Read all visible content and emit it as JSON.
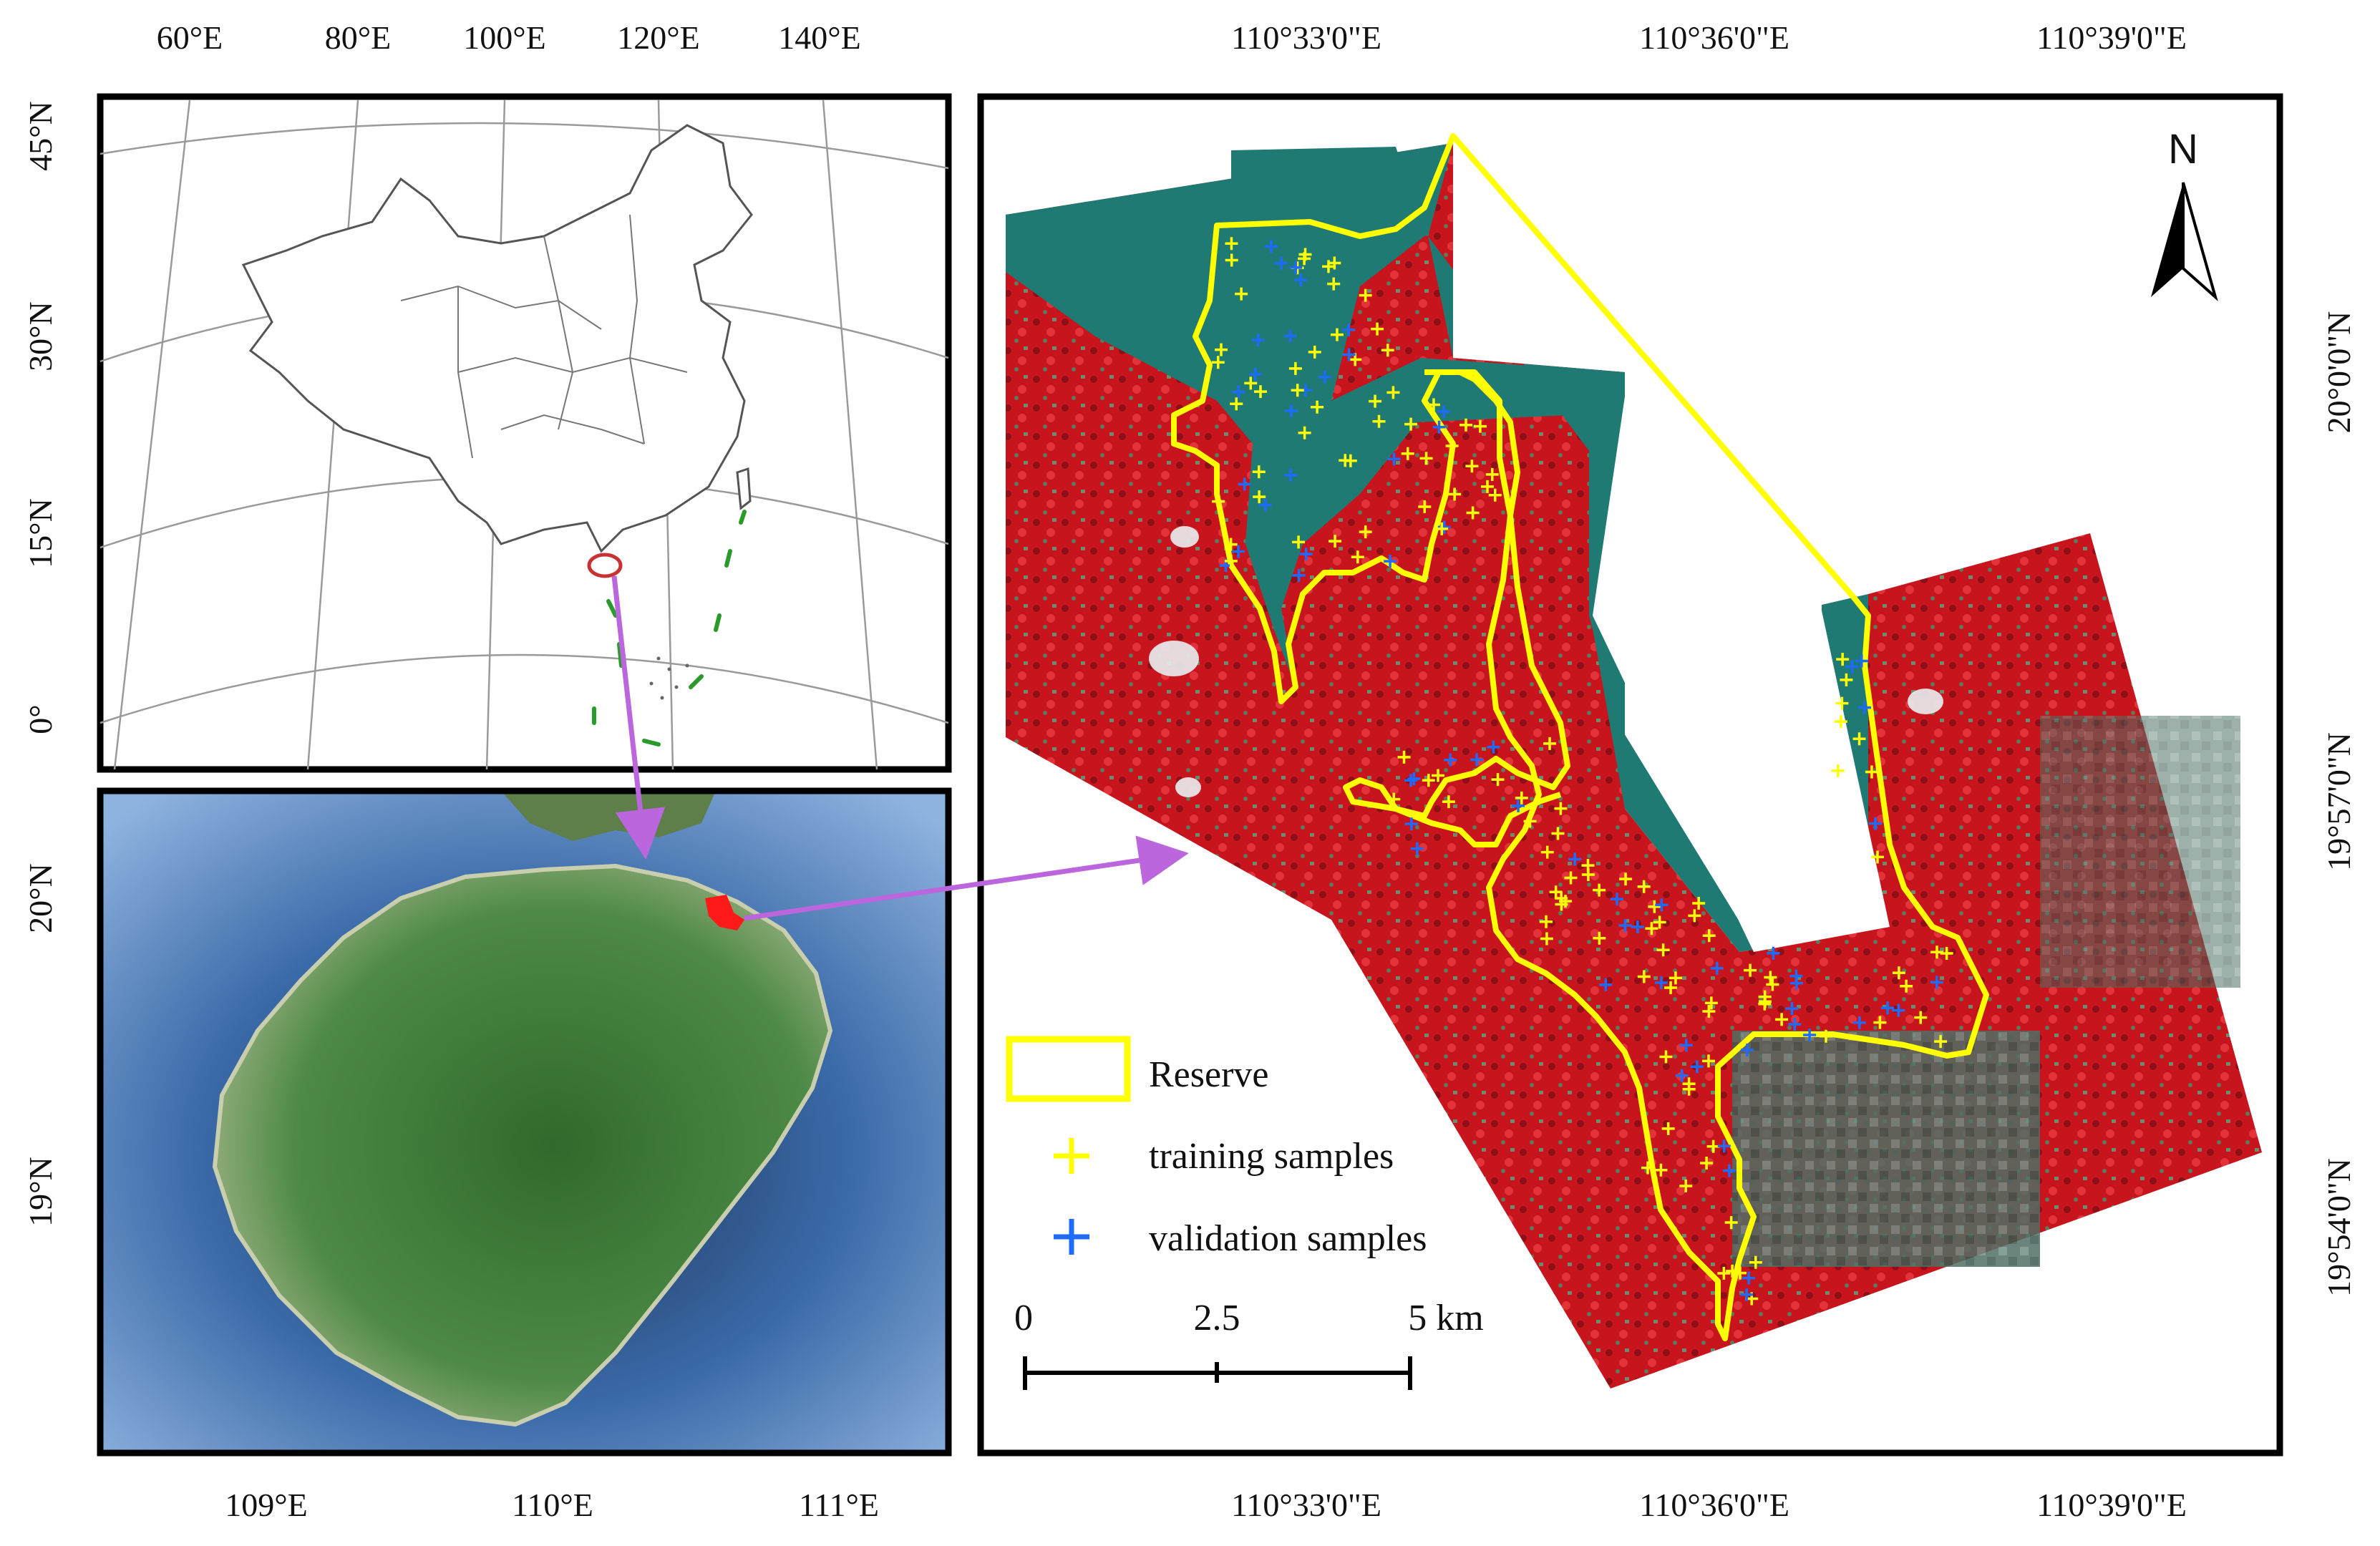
{
  "panels": {
    "overview": {
      "lon_ticks": [
        "60°E",
        "80°E",
        "100°E",
        "120°E",
        "140°E"
      ],
      "lat_ticks": [
        "45°N",
        "30°N",
        "15°N",
        "0°"
      ]
    },
    "island": {
      "lon_ticks": [
        "109°E",
        "110°E",
        "111°E"
      ],
      "lat_ticks": [
        "20°N",
        "19°N"
      ]
    },
    "detail": {
      "lon_ticks_top": [
        "110°33'0\"E",
        "110°36'0\"E",
        "110°39'0\"E"
      ],
      "lon_ticks_bottom": [
        "110°33'0\"E",
        "110°36'0\"E",
        "110°39'0\"E"
      ],
      "lat_ticks": [
        "20°0'0\"N",
        "19°57'0\"N",
        "19°54'0\"N"
      ],
      "north_label": "N"
    }
  },
  "legend": {
    "reserve": "Reserve",
    "training": "training samples",
    "validation": "validation samples"
  },
  "scalebar": {
    "labels": [
      "0",
      "2.5",
      "5 km"
    ]
  },
  "colors": {
    "reserve_outline": "#ffff00",
    "training_marker": "#ffff00",
    "validation_marker": "#1e6bff",
    "arrow": "#bb66dd",
    "vegetation": "#c8141c",
    "water": "#1f7a74"
  }
}
